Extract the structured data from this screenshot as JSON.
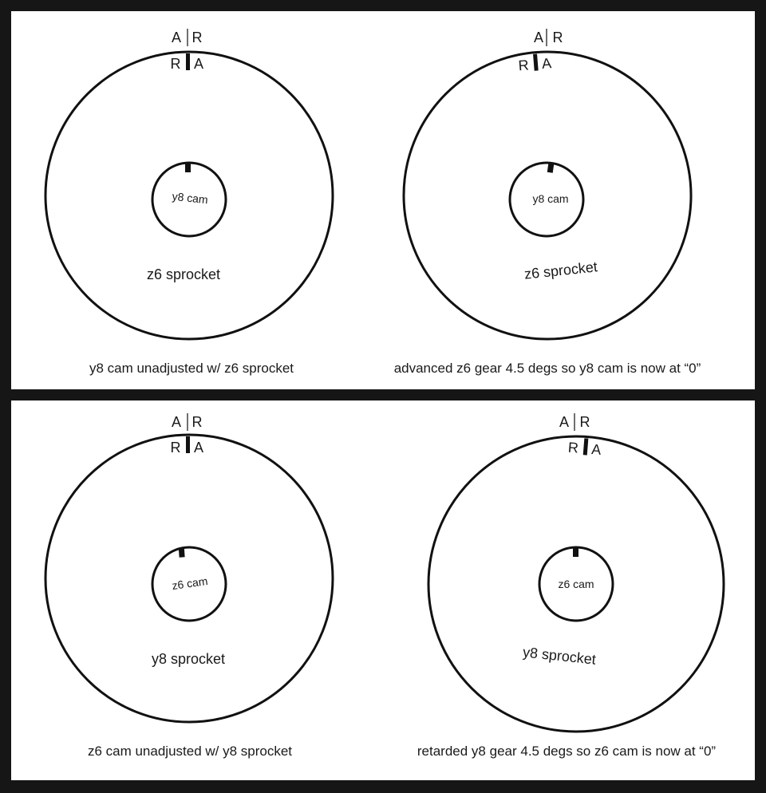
{
  "diagrams": [
    {
      "inner_label": "y8 cam",
      "outer_label": "z6 sprocket",
      "caption": "y8 cam unadjusted w/ z6 sprocket",
      "top_left_letter": "A",
      "top_right_letter": "R",
      "mark_left_letter": "R",
      "mark_right_letter": "A",
      "rotation_deg": 0
    },
    {
      "inner_label": "y8 cam",
      "outer_label": "z6 sprocket",
      "caption": "advanced z6 gear 4.5 degs so y8 cam is now at “0”",
      "top_left_letter": "A",
      "top_right_letter": "R",
      "mark_left_letter": "R",
      "mark_right_letter": "A",
      "rotation_deg": -4.5
    },
    {
      "inner_label": "z6 cam",
      "outer_label": "y8 sprocket",
      "caption": "z6 cam unadjusted w/ y8 sprocket",
      "top_left_letter": "A",
      "top_right_letter": "R",
      "mark_left_letter": "R",
      "mark_right_letter": "A",
      "rotation_deg": 0
    },
    {
      "inner_label": "z6 cam",
      "outer_label": "y8 sprocket",
      "caption": "retarded y8 gear 4.5 degs so z6 cam is now at “0”",
      "top_left_letter": "A",
      "top_right_letter": "R",
      "mark_left_letter": "R",
      "mark_right_letter": "A",
      "rotation_deg": 4.5
    }
  ]
}
